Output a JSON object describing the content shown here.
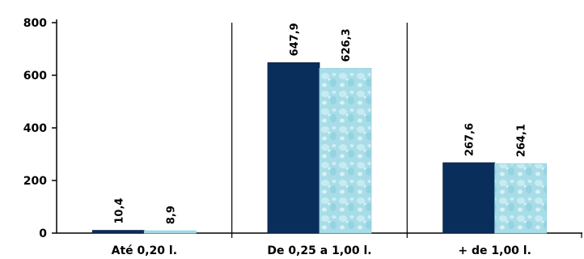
{
  "chart_data": {
    "type": "bar",
    "title": "",
    "xlabel": "",
    "ylabel": "",
    "categories": [
      "Até 0,20 l.",
      "De 0,25 a 1,00 l.",
      "+ de 1,00 l."
    ],
    "series": [
      {
        "values": [
          10.4,
          647.9,
          267.6
        ],
        "labels": [
          "10,4",
          "647,9",
          "267,6"
        ],
        "color": "#0a2e5c"
      },
      {
        "values": [
          8.9,
          626.3,
          264.1
        ],
        "labels": [
          "8,9",
          "626,3",
          "264,1"
        ],
        "color": "#a8dde8"
      }
    ],
    "ylim": [
      0,
      800
    ],
    "yticks": [
      0,
      200,
      400,
      600,
      800
    ],
    "ytick_labels": [
      "0",
      "200",
      "400",
      "600",
      "800"
    ],
    "grid": false,
    "legend": "none"
  }
}
